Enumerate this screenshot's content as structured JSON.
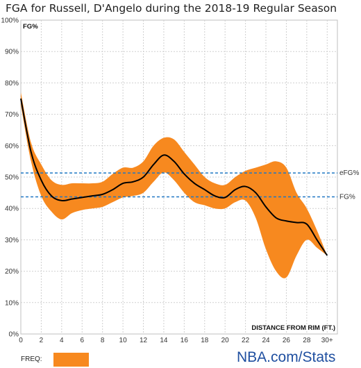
{
  "chart_data": {
    "type": "area",
    "title": "FGA for Russell, D'Angelo during the 2018-19 Regular Season",
    "ylabel": "FG%",
    "xlabel": "DISTANCE FROM RIM (FT.)",
    "xlim": [
      0,
      31
    ],
    "ylim": [
      0,
      100
    ],
    "x_ticks": [
      "0",
      "2",
      "4",
      "6",
      "8",
      "10",
      "12",
      "14",
      "16",
      "18",
      "20",
      "22",
      "24",
      "26",
      "28",
      "30+"
    ],
    "y_ticks": [
      "0%",
      "10%",
      "20%",
      "30%",
      "40%",
      "50%",
      "60%",
      "70%",
      "80%",
      "90%",
      "100%"
    ],
    "grid": true,
    "series": [
      {
        "name": "FG%",
        "style": "line",
        "color": "#000000",
        "x": [
          0,
          1,
          2,
          3,
          4,
          5,
          6,
          7,
          8,
          9,
          10,
          11,
          12,
          13,
          14,
          15,
          16,
          17,
          18,
          19,
          20,
          21,
          22,
          23,
          24,
          25,
          26,
          27,
          28,
          29,
          30
        ],
        "values": [
          75,
          58,
          49,
          44,
          42.5,
          43,
          43.5,
          44,
          44.5,
          46,
          48,
          48.5,
          50,
          54,
          57,
          55,
          51,
          48,
          46,
          44,
          43.5,
          46,
          47,
          45,
          40.5,
          37,
          36,
          35.5,
          35,
          30,
          25
        ]
      },
      {
        "name": "FREQ:",
        "style": "band",
        "color": "#f7891f",
        "x": [
          0,
          1,
          2,
          3,
          4,
          5,
          6,
          7,
          8,
          9,
          10,
          11,
          12,
          13,
          14,
          15,
          16,
          17,
          18,
          19,
          20,
          21,
          22,
          23,
          24,
          25,
          26,
          27,
          28,
          29,
          30
        ],
        "upper": [
          77,
          61,
          54,
          49,
          47.5,
          48,
          48,
          48,
          48.5,
          51,
          53,
          53,
          55,
          60,
          62.5,
          62,
          58,
          54,
          50,
          48,
          47.5,
          50,
          52,
          53,
          54,
          55,
          53,
          45,
          40,
          33,
          25
        ],
        "lower": [
          73,
          55,
          44,
          39,
          36.5,
          38.5,
          39.5,
          40,
          40.5,
          42,
          43.5,
          44,
          45,
          48.5,
          51.5,
          49,
          45,
          42,
          41,
          40,
          40,
          42,
          42.5,
          37,
          27,
          20,
          18,
          25,
          30,
          27.5,
          25
        ]
      }
    ],
    "reference_lines": [
      {
        "name": "eFG%",
        "value": 51.3,
        "color": "#1f77c4"
      },
      {
        "name": "FG%",
        "value": 43.7,
        "color": "#1f77c4"
      }
    ],
    "legend": {
      "position": "bottom-left",
      "label": "FREQ:",
      "color": "#f7891f"
    }
  },
  "branding": {
    "text": "NBA.com/Stats",
    "color": "#1f4fa0"
  }
}
